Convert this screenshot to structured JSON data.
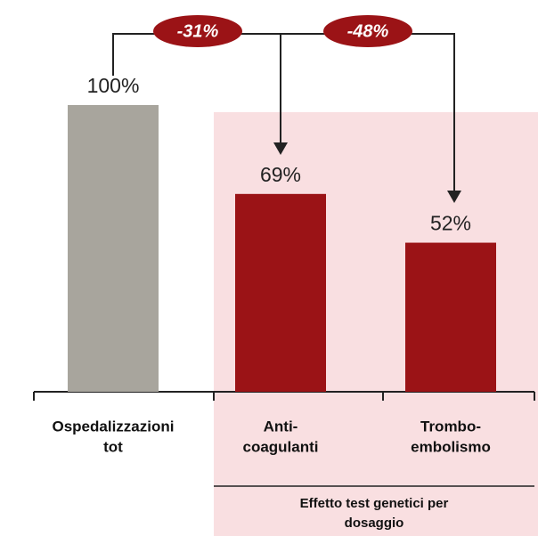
{
  "chart_data": {
    "type": "bar",
    "categories": [
      [
        "Ospedalizzazioni",
        "tot"
      ],
      [
        "Anti-",
        "coagulanti"
      ],
      [
        "Trombo-",
        "embolismo"
      ]
    ],
    "values": [
      100,
      69,
      52
    ],
    "value_labels": [
      "100%",
      "69%",
      "52%"
    ],
    "colors": [
      "#a8a59d",
      "#9b1316",
      "#9b1316"
    ],
    "annotations": [
      "-31%",
      "-48%"
    ],
    "group_label": [
      "Effetto test genetici per",
      "dosaggio"
    ]
  }
}
